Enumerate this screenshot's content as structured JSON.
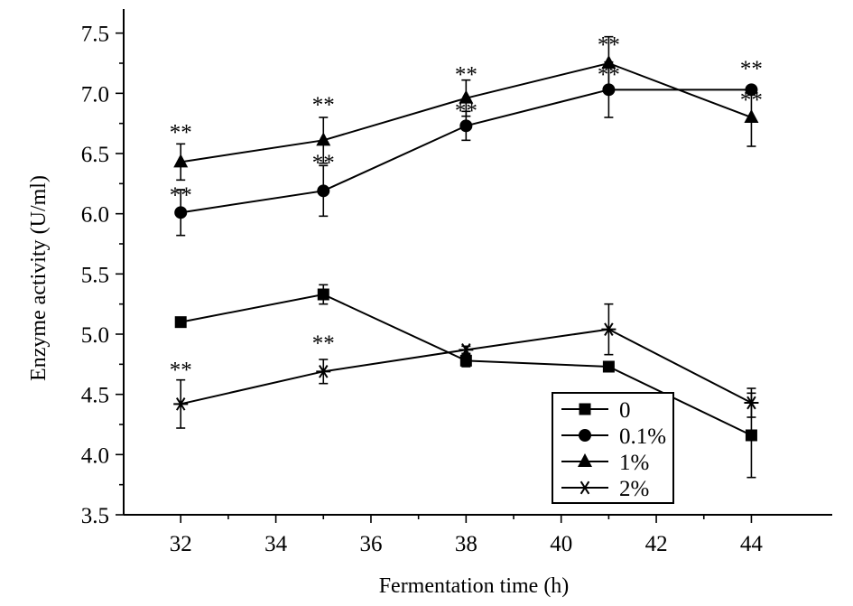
{
  "chart_data": {
    "type": "line",
    "title": "",
    "xlabel": "Fermentation time (h)",
    "ylabel": "Enzyme activity (U/ml)",
    "xlim": [
      30.8,
      45.7
    ],
    "ylim": [
      3.5,
      7.7
    ],
    "xticks": [
      32,
      34,
      36,
      38,
      40,
      42,
      44
    ],
    "xtick_labels": [
      "32",
      "34",
      "36",
      "38",
      "40",
      "42",
      "44"
    ],
    "yticks": [
      3.5,
      4.0,
      4.5,
      5.0,
      5.5,
      6.0,
      6.5,
      7.0,
      7.5
    ],
    "ytick_labels": [
      "3.5",
      "4.0",
      "4.5",
      "5.0",
      "5.5",
      "6.0",
      "6.5",
      "7.0",
      "7.5"
    ],
    "x": [
      32,
      35,
      38,
      41,
      44
    ],
    "legend_position": "bottom-right",
    "series": [
      {
        "name": "0",
        "marker": "square",
        "values": [
          5.1,
          5.33,
          4.78,
          4.73,
          4.16
        ],
        "errors": [
          0.03,
          0.08,
          0.05,
          0.04,
          0.35
        ],
        "annotations": [
          "",
          "",
          "",
          "",
          "**"
        ],
        "annotation_values": [
          null,
          null,
          null,
          null,
          7.13
        ]
      },
      {
        "name": "0.1%",
        "marker": "circle",
        "values": [
          6.01,
          6.19,
          6.73,
          7.03,
          7.03
        ],
        "errors": [
          0.19,
          0.21,
          0.12,
          0.23,
          0.0
        ],
        "annotations": [
          "**",
          "**",
          "**",
          "**",
          ""
        ],
        "annotation_values": [
          6.08,
          6.35,
          6.78,
          7.08,
          null
        ]
      },
      {
        "name": "1%",
        "marker": "triangle",
        "values": [
          6.43,
          6.61,
          6.96,
          7.25,
          6.8
        ],
        "errors": [
          0.15,
          0.19,
          0.15,
          0.22,
          0.24
        ],
        "annotations": [
          "**",
          "**",
          "**",
          "**",
          "**"
        ],
        "annotation_values": [
          6.6,
          6.83,
          7.08,
          7.33,
          6.87
        ]
      },
      {
        "name": "2%",
        "marker": "asterisk",
        "values": [
          4.42,
          4.69,
          4.87,
          5.04,
          4.43
        ],
        "errors": [
          0.2,
          0.1,
          0.03,
          0.21,
          0.12
        ],
        "annotations": [
          "**",
          "**",
          "",
          "",
          ""
        ],
        "annotation_values": [
          4.63,
          4.85,
          null,
          null,
          null
        ]
      }
    ]
  }
}
